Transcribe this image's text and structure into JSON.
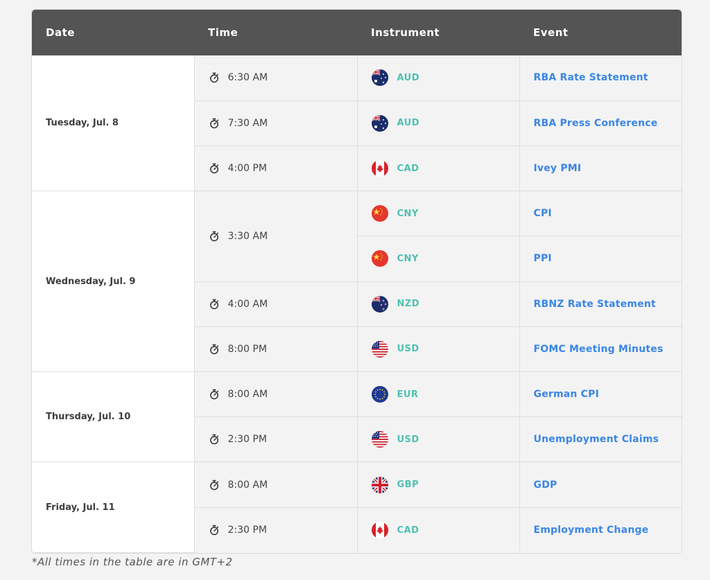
{
  "table": {
    "headers": [
      "Date",
      "Time",
      "Instrument",
      "Event"
    ],
    "days": [
      {
        "date": "Tuesday, Jul. 8",
        "slots": [
          {
            "time": "6:30 AM",
            "rows": [
              {
                "flag": "au-flag-icon",
                "currency": "AUD",
                "event": "RBA Rate Statement"
              }
            ]
          },
          {
            "time": "7:30 AM",
            "rows": [
              {
                "flag": "au-flag-icon",
                "currency": "AUD",
                "event": "RBA Press Conference"
              }
            ]
          },
          {
            "time": "4:00 PM",
            "rows": [
              {
                "flag": "ca-flag-icon",
                "currency": "CAD",
                "event": "Ivey PMI"
              }
            ]
          }
        ]
      },
      {
        "date": "Wednesday, Jul. 9",
        "slots": [
          {
            "time": "3:30 AM",
            "rows": [
              {
                "flag": "cn-flag-icon",
                "currency": "CNY",
                "event": "CPI"
              },
              {
                "flag": "cn-flag-icon",
                "currency": "CNY",
                "event": "PPI"
              }
            ]
          },
          {
            "time": "4:00 AM",
            "rows": [
              {
                "flag": "nz-flag-icon",
                "currency": "NZD",
                "event": "RBNZ Rate Statement"
              }
            ]
          },
          {
            "time": "8:00 PM",
            "rows": [
              {
                "flag": "us-flag-icon",
                "currency": "USD",
                "event": "FOMC Meeting Minutes"
              }
            ]
          }
        ]
      },
      {
        "date": "Thursday, Jul. 10",
        "slots": [
          {
            "time": "8:00 AM",
            "rows": [
              {
                "flag": "eu-flag-icon",
                "currency": "EUR",
                "event": "German CPI"
              }
            ]
          },
          {
            "time": "2:30 PM",
            "rows": [
              {
                "flag": "us-flag-icon",
                "currency": "USD",
                "event": "Unemployment Claims"
              }
            ]
          }
        ]
      },
      {
        "date": "Friday, Jul. 11",
        "slots": [
          {
            "time": "8:00 AM",
            "rows": [
              {
                "flag": "gb-flag-icon",
                "currency": "GBP",
                "event": "GDP"
              }
            ]
          },
          {
            "time": "2:30 PM",
            "rows": [
              {
                "flag": "ca-flag-icon",
                "currency": "CAD",
                "event": "Employment Change"
              }
            ]
          }
        ]
      }
    ],
    "time_icon": "stopwatch-icon"
  },
  "footnote": "*All times in the table are in GMT+2",
  "colors": {
    "header_bg": "#545454",
    "currency": "#4ec0b2",
    "event_link": "#3a86e6",
    "date_cell_bg": "#ffffff",
    "body_bg": "#f3f3f3"
  }
}
